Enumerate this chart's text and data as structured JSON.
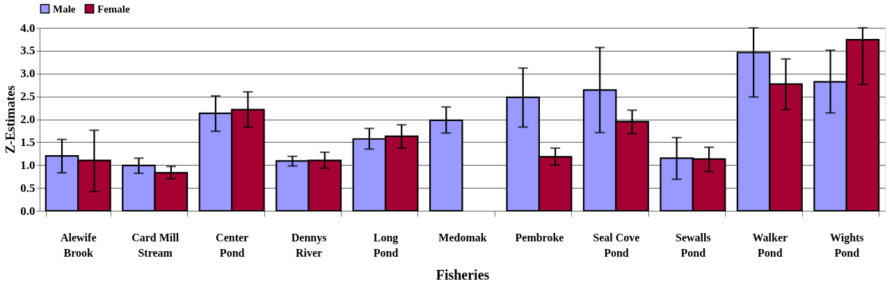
{
  "chart_data": {
    "type": "bar",
    "xlabel": "Fisheries",
    "ylabel": "Z-Estimates",
    "categories": [
      "Alewife Brook",
      "Card Mill Stream",
      "Center Pond",
      "Dennys River",
      "Long Pond",
      "Medomak",
      "Pembroke",
      "Seal Cove Pond",
      "Sewalls Pond",
      "Walker Pond",
      "Wights Pond"
    ],
    "series": [
      {
        "name": "Male",
        "color": "#9999ff",
        "values": [
          1.2,
          0.99,
          2.13,
          1.09,
          1.57,
          1.98,
          2.48,
          2.64,
          1.15,
          3.46,
          2.82
        ],
        "errors": [
          [
            0.83,
            1.56
          ],
          [
            0.82,
            1.15
          ],
          [
            1.74,
            2.51
          ],
          [
            0.98,
            1.19
          ],
          [
            1.35,
            1.8
          ],
          [
            1.7,
            2.27
          ],
          [
            1.83,
            3.12
          ],
          [
            1.71,
            3.57
          ],
          [
            0.69,
            1.6
          ],
          [
            2.49,
            4.0
          ],
          [
            2.14,
            3.51
          ]
        ]
      },
      {
        "name": "Female",
        "color": "#a50034",
        "values": [
          1.1,
          0.83,
          2.21,
          1.1,
          1.63,
          null,
          1.18,
          1.95,
          1.13,
          2.77,
          3.74
        ],
        "errors": [
          [
            0.42,
            1.76
          ],
          [
            0.7,
            0.97
          ],
          [
            1.83,
            2.6
          ],
          [
            0.93,
            1.28
          ],
          [
            1.37,
            1.88
          ],
          null,
          [
            1.0,
            1.37
          ],
          [
            1.69,
            2.2
          ],
          [
            0.86,
            1.39
          ],
          [
            2.21,
            3.32
          ],
          [
            2.76,
            4.0
          ]
        ]
      }
    ],
    "ylim": [
      0,
      4.0
    ],
    "yticks": [
      {
        "value": 0,
        "label": "0.0"
      },
      0.5,
      {
        "value": 1,
        "label": "1.0"
      },
      1.5,
      {
        "value": 2,
        "label": "2.0"
      },
      2.5,
      {
        "value": 3,
        "label": "3.0"
      },
      3.5,
      {
        "value": 4,
        "label": "4.0"
      }
    ],
    "grid": "y",
    "legend": "top"
  }
}
